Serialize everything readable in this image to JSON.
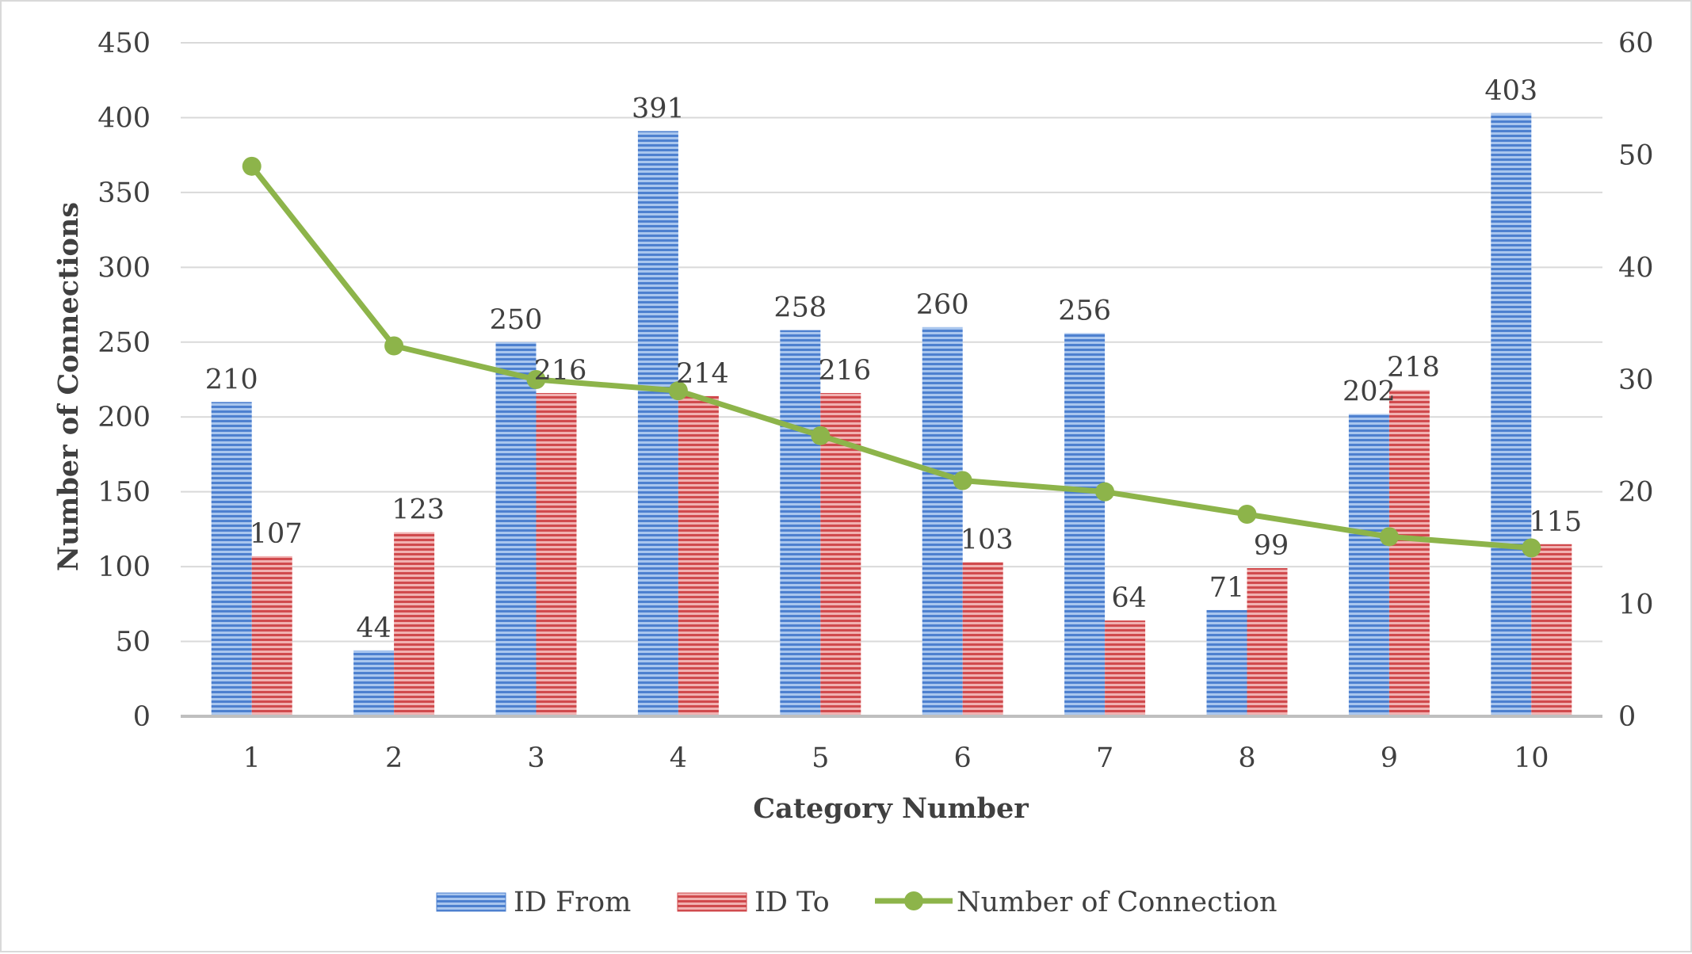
{
  "chart_data": {
    "type": "bar",
    "combo": "bar+line, secondary y-axis for line",
    "categories": [
      "1",
      "2",
      "3",
      "4",
      "5",
      "6",
      "7",
      "8",
      "9",
      "10"
    ],
    "series": [
      {
        "name": "ID From",
        "type": "bar",
        "axis": "primary",
        "color": "#5b8fd6",
        "pattern": "horizontal-stripes",
        "values": [
          210,
          44,
          250,
          391,
          258,
          260,
          256,
          71,
          202,
          403
        ],
        "labels": [
          "210",
          "44",
          "250",
          "391",
          "258",
          "260",
          "256",
          "71",
          "202",
          "403"
        ]
      },
      {
        "name": "ID To",
        "type": "bar",
        "axis": "primary",
        "color": "#d9595c",
        "pattern": "horizontal-stripes",
        "values": [
          107,
          123,
          216,
          214,
          216,
          103,
          64,
          99,
          218,
          115
        ],
        "labels": [
          "107",
          "123",
          "216",
          "214",
          "216",
          "103",
          "64",
          "99",
          "218",
          "115"
        ]
      },
      {
        "name": "Number of Connection",
        "type": "line",
        "axis": "secondary",
        "color": "#8db44a",
        "marker": "circle",
        "values": [
          49,
          33,
          30,
          29,
          25,
          21,
          20,
          18,
          16,
          15
        ]
      }
    ],
    "title": "",
    "xlabel": "Category Number",
    "ylabel": "Number of Connections",
    "y2label": "",
    "ylim": [
      0,
      450
    ],
    "y_ticks": [
      "0",
      "50",
      "100",
      "150",
      "200",
      "250",
      "300",
      "350",
      "400",
      "450"
    ],
    "y2lim": [
      0,
      60
    ],
    "y2_ticks": [
      "0",
      "10",
      "20",
      "30",
      "40",
      "50",
      "60"
    ],
    "grid": true,
    "legend": "bottom",
    "colors": {
      "grid": "#d9d9d9",
      "axis": "#bfbfbf",
      "text": "#404040"
    }
  }
}
